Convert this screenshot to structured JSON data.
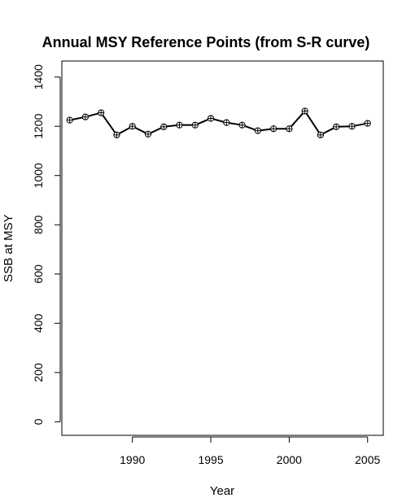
{
  "chart_data": {
    "type": "line",
    "title": "Annual MSY Reference Points (from S-R curve)",
    "xlabel": "Year",
    "ylabel": "SSB at MSY",
    "x": [
      1986,
      1987,
      1988,
      1989,
      1990,
      1991,
      1992,
      1993,
      1994,
      1995,
      1996,
      1997,
      1998,
      1999,
      2000,
      2001,
      2002,
      2003,
      2004,
      2005
    ],
    "series": [
      {
        "values": [
          1225,
          1238,
          1255,
          1165,
          1200,
          1168,
          1198,
          1205,
          1205,
          1232,
          1215,
          1205,
          1182,
          1190,
          1190,
          1262,
          1165,
          1198,
          1200,
          1212
        ]
      }
    ],
    "xlim": [
      1985.5,
      2006
    ],
    "ylim": [
      -55,
      1465
    ],
    "xticks": [
      1990,
      1995,
      2000,
      2005
    ],
    "yticks": [
      0,
      200,
      400,
      600,
      800,
      1000,
      1200,
      1400
    ],
    "marker": "circle-plus",
    "grid": false,
    "line_color": "#000000"
  }
}
